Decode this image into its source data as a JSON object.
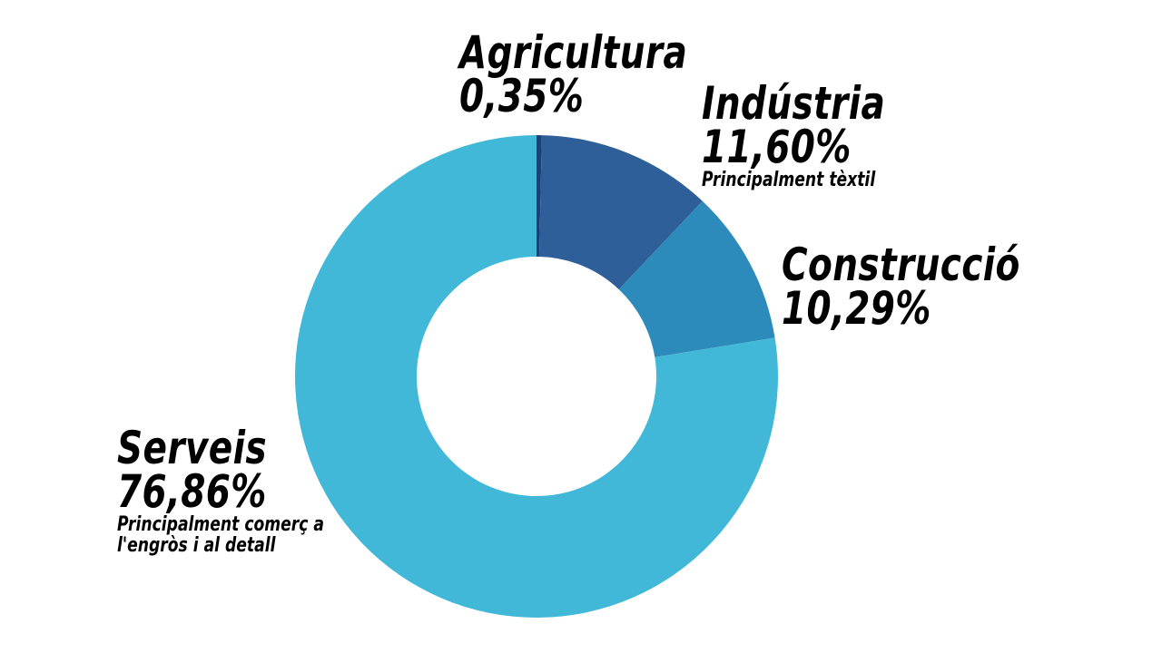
{
  "chart_data": {
    "type": "pie",
    "variant": "donut",
    "slices": [
      {
        "name": "Agricultura",
        "value": 0.35,
        "value_label": "0,35%",
        "note": "",
        "color": "#1e3f7a"
      },
      {
        "name": "Indústria",
        "value": 11.6,
        "value_label": "11,60%",
        "note": "Principalment tèxtil",
        "color": "#2e5f98"
      },
      {
        "name": "Construcció",
        "value": 10.29,
        "value_label": "10,29%",
        "note": "",
        "color": "#2c8bba"
      },
      {
        "name": "Serveis",
        "value": 76.86,
        "value_label": "76,86%",
        "note_lines": [
          "Principalment comerç a",
          "l'engròs i al detall"
        ],
        "color": "#42b8d8"
      }
    ],
    "start_angle": "top (12 o'clock)",
    "direction": "clockwise",
    "legend": "none (labels placed beside slices)"
  }
}
